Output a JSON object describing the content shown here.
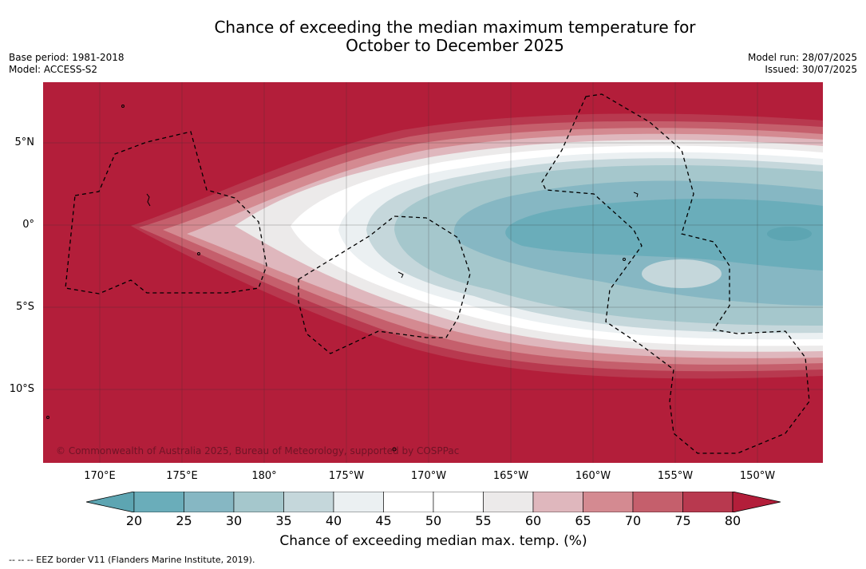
{
  "title": {
    "line1": "Chance of exceeding the median maximum temperature for",
    "line2": "October to December 2025"
  },
  "meta_left": {
    "base_period": "Base period: 1981-2018",
    "model": "Model: ACCESS-S2"
  },
  "meta_right": {
    "model_run": "Model run: 28/07/2025",
    "issued": "Issued: 30/07/2025"
  },
  "map": {
    "latitude_labels": [
      "5°N",
      "0°",
      "5°S",
      "10°S"
    ],
    "longitude_labels": [
      "170°E",
      "175°E",
      "180°",
      "175°W",
      "170°W",
      "165°W",
      "160°W",
      "155°W",
      "150°W"
    ],
    "copyright": "© Commonwealth of Australia 2025, Bureau of Meteorology, supported by COSPPac",
    "land_color": "#b31e3a"
  },
  "colorbar": {
    "ticks": [
      "20",
      "25",
      "30",
      "35",
      "40",
      "45",
      "50",
      "55",
      "60",
      "65",
      "70",
      "75",
      "80"
    ],
    "colors": [
      "#5da5b2",
      "#6aadba",
      "#86b7c3",
      "#a5c7cc",
      "#c5d7db",
      "#ebf0f2",
      "#ffffff",
      "#ffffff",
      "#eceaea",
      "#dfb7bd",
      "#d48a91",
      "#c55f6c",
      "#b8394f",
      "#b31e3a"
    ],
    "label": "Chance of exceeding median max. temp. (%)"
  },
  "footer": "--  --  -- EEZ border V11 (Flanders Marine Institute, 2019)."
}
